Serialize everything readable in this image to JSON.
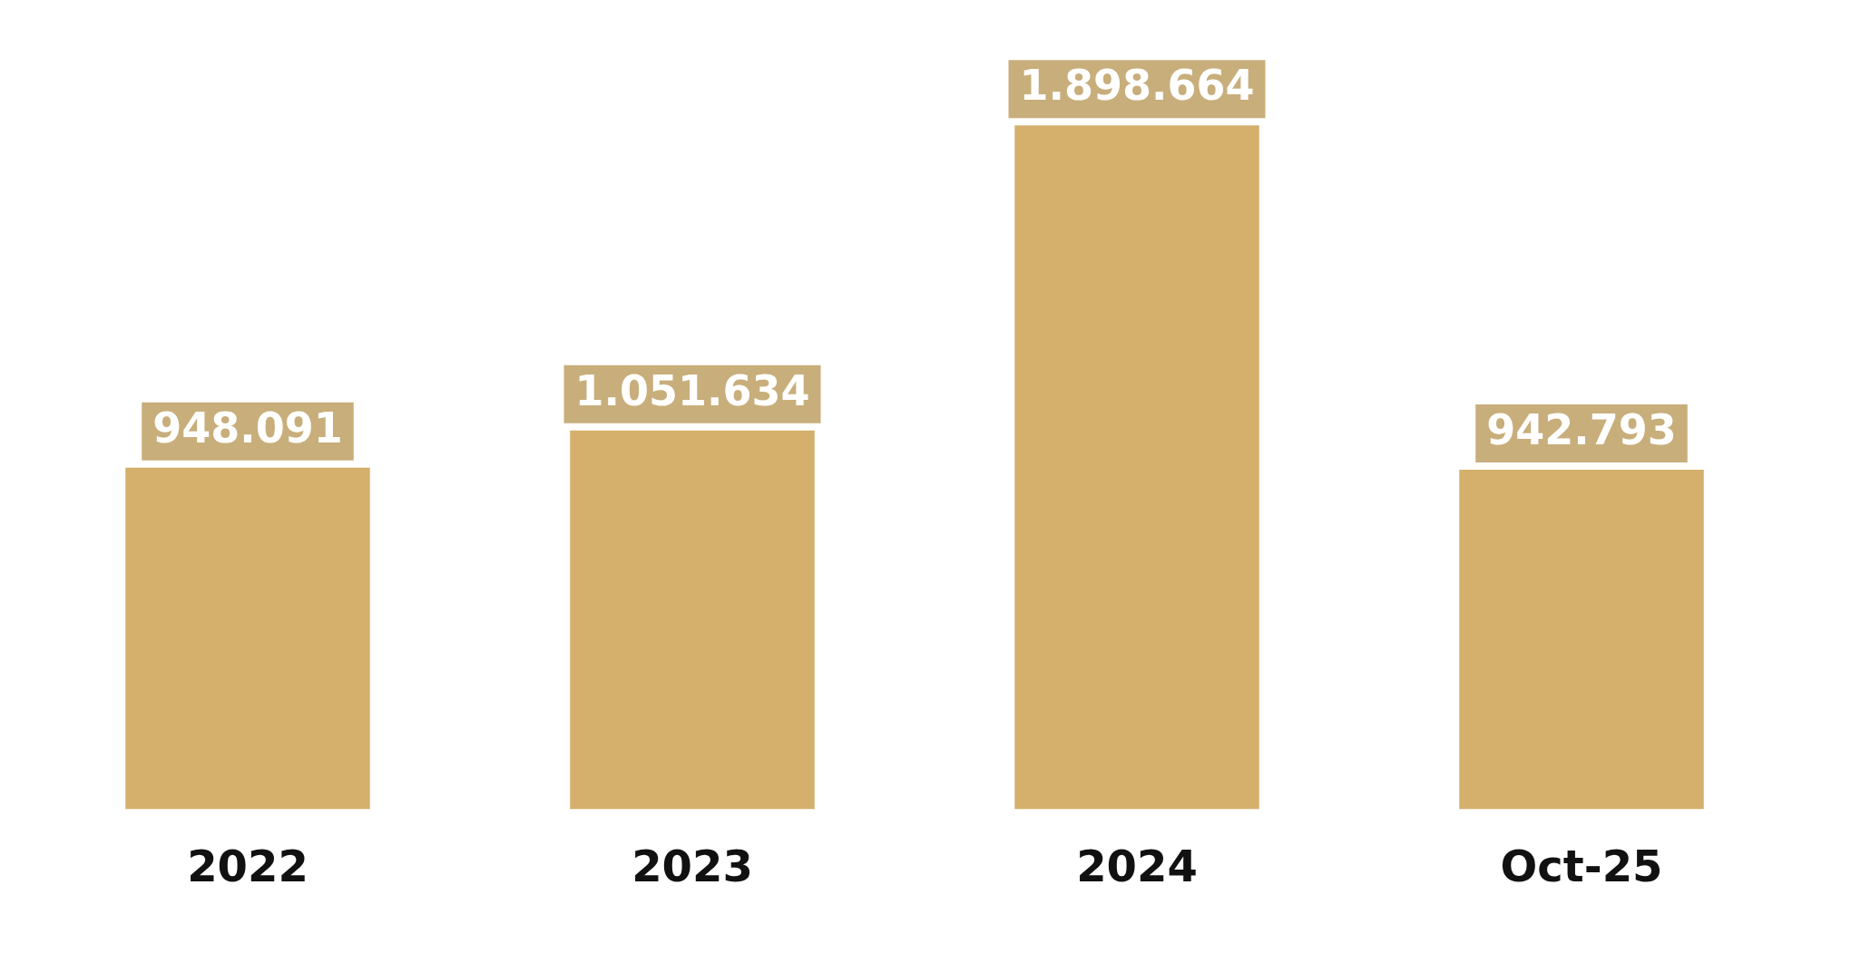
{
  "chart_data": {
    "type": "bar",
    "categories": [
      "2022",
      "2023",
      "2024",
      "Oct-25"
    ],
    "values": [
      948091,
      1051634,
      1898664,
      942793
    ],
    "value_labels": [
      "948.091",
      "1.051.634",
      "1.898.664",
      "942.793"
    ],
    "color": "#d4b06c",
    "grid": false,
    "legend": false
  }
}
